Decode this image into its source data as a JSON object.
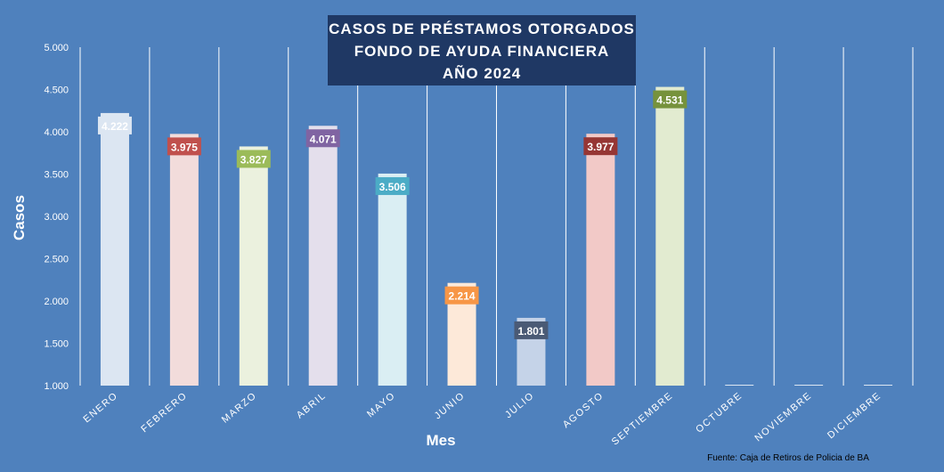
{
  "title": {
    "line1": "CASOS DE PRÉSTAMOS OTORGADOS",
    "line2": "FONDO DE AYUDA FINANCIERA",
    "line3": "AÑO 2024"
  },
  "source": "Fuente: Caja de Retiros de Policia de BA",
  "colors": {
    "background": "#4f81bd",
    "title_box": "#1f3864",
    "text": "#ffffff"
  },
  "chart_data": {
    "type": "bar",
    "xlabel": "Mes",
    "ylabel": "Casos",
    "ylim": [
      1000,
      5000
    ],
    "yticks": [
      "1.000",
      "1.500",
      "2.000",
      "2.500",
      "3.000",
      "3.500",
      "4.000",
      "4.500",
      "5.000"
    ],
    "grid": "vertical",
    "categories": [
      "ENERO",
      "FEBRERO",
      "MARZO",
      "ABRIL",
      "MAYO",
      "JUNIO",
      "JULIO",
      "AGOSTO",
      "SEPTIEMBRE",
      "OCTUBRE",
      "NOVIEMBRE",
      "DICIEMBRE"
    ],
    "values": [
      4222,
      3975,
      3827,
      4071,
      3506,
      2214,
      1801,
      3977,
      4531,
      1000,
      1000,
      1000
    ],
    "data_labels": [
      "4.222",
      "3.975",
      "3.827",
      "4.071",
      "3.506",
      "2.214",
      "1.801",
      "3.977",
      "4.531",
      "",
      "",
      ""
    ],
    "bar_colors": [
      "#dce6f2",
      "#f2dcdb",
      "#ebf1de",
      "#e4dfec",
      "#daeef3",
      "#fde9d9",
      "#c5d3e8",
      "#f2c9c7",
      "#e2ebd0",
      "#dce6f2",
      "#dce6f2",
      "#dce6f2"
    ],
    "label_colors": [
      "#dce6f2",
      "#c0504d",
      "#9bbb59",
      "#8064a2",
      "#4bacc6",
      "#f79646",
      "#4a5a75",
      "#963634",
      "#76923c",
      "",
      "",
      ""
    ],
    "label_text_colors": [
      "#ffffff",
      "#ffffff",
      "#ffffff",
      "#ffffff",
      "#ffffff",
      "#ffffff",
      "#ffffff",
      "#ffffff",
      "#ffffff",
      "",
      "",
      ""
    ]
  }
}
